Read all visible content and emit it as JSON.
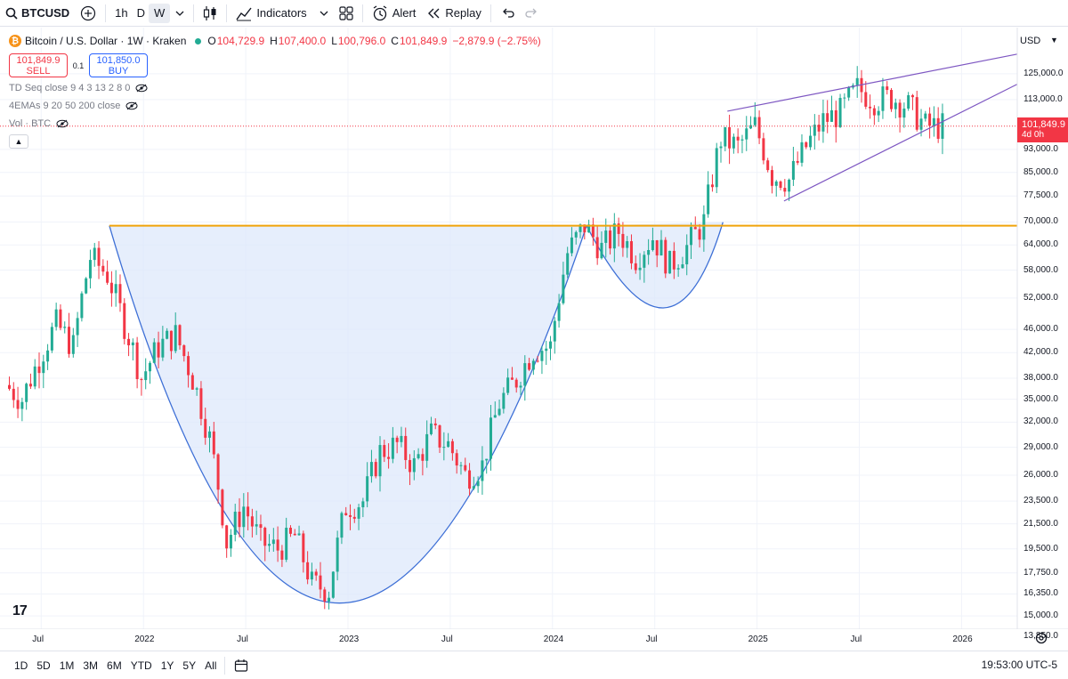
{
  "toolbar": {
    "symbol": "BTCUSD",
    "intervals": [
      "1h",
      "D",
      "W"
    ],
    "active_interval": "W",
    "indicators_label": "Indicators",
    "alert_label": "Alert",
    "replay_label": "Replay",
    "icons": [
      "search-icon",
      "add-symbol-icon",
      "chevron-down-icon",
      "candles-icon",
      "indicators-icon",
      "layout-icon",
      "alert-icon",
      "replay-icon",
      "undo-icon",
      "redo-icon"
    ]
  },
  "legend": {
    "title": "Bitcoin / U.S. Dollar · 1W · Kraken",
    "open_label": "O",
    "open": "104,729.9",
    "high_label": "H",
    "high": "107,400.0",
    "low_label": "L",
    "low": "100,796.0",
    "close_label": "C",
    "close": "101,849.9",
    "change": "−2,879.9 (−2.75%)",
    "sell_price": "101,849.9",
    "sell_label": "SELL",
    "spread": "0.1",
    "buy_price": "101,850.0",
    "buy_label": "BUY",
    "indicators": [
      "TD Seq close 9 4 3 13 2 8 0",
      "4EMAs 9 20 50 200 close",
      "Vol · BTC"
    ]
  },
  "price_axis": {
    "currency": "USD",
    "labels": [
      "125,000.0",
      "113,000.0",
      "93,000.0",
      "85,000.0",
      "77,500.0",
      "70,000.0",
      "64,000.0",
      "58,000.0",
      "52,000.0",
      "46,000.0",
      "42,000.0",
      "38,000.0",
      "35,000.0",
      "32,000.0",
      "29,000.0",
      "26,000.0",
      "23,500.0",
      "21,500.0",
      "19,500.0",
      "17,750.0",
      "16,350.0",
      "15,000.0",
      "13,850.0"
    ],
    "last_price": "101,849.9",
    "countdown": "4d 0h"
  },
  "time_axis": {
    "labels": [
      "Jul",
      "2022",
      "Jul",
      "2023",
      "Jul",
      "2024",
      "Jul",
      "2025",
      "Jul",
      "2026"
    ]
  },
  "bottom_bar": {
    "ranges": [
      "1D",
      "5D",
      "1M",
      "3M",
      "6M",
      "YTD",
      "1Y",
      "5Y",
      "All"
    ],
    "clock": "19:53:00 UTC-5"
  },
  "colors": {
    "up": "#22ab94",
    "down": "#f23645",
    "resistance": "#f0a30a",
    "cup_line": "#3d6fd6",
    "cup_fill": "#dbe7fb",
    "wedge": "#7e57c2",
    "last_price": "#f23645"
  },
  "chart_data": {
    "type": "candlestick",
    "title": "Bitcoin / U.S. Dollar · 1W · Kraken",
    "scale": "log",
    "ylim": [
      13850,
      135000
    ],
    "x_range": [
      "2021-05",
      "2026-01"
    ],
    "series": [
      {
        "name": "BTCUSD weekly closes (approx.)",
        "x": [
          "2021-05",
          "2021-06",
          "2021-07",
          "2021-08",
          "2021-09",
          "2021-10",
          "2021-11",
          "2021-12",
          "2022-01",
          "2022-02",
          "2022-03",
          "2022-04",
          "2022-05",
          "2022-06",
          "2022-07",
          "2022-08",
          "2022-09",
          "2022-10",
          "2022-11",
          "2022-12",
          "2023-01",
          "2023-02",
          "2023-03",
          "2023-04",
          "2023-05",
          "2023-06",
          "2023-07",
          "2023-08",
          "2023-09",
          "2023-10",
          "2023-11",
          "2023-12",
          "2024-01",
          "2024-02",
          "2024-03",
          "2024-04",
          "2024-05",
          "2024-06",
          "2024-07",
          "2024-08",
          "2024-09",
          "2024-10",
          "2024-11",
          "2024-12",
          "2025-01",
          "2025-02",
          "2025-03",
          "2025-04",
          "2025-05",
          "2025-06",
          "2025-07",
          "2025-08",
          "2025-09",
          "2025-10",
          "2025-11"
        ],
        "values": [
          37000,
          35000,
          41000,
          47000,
          43000,
          61000,
          57000,
          47000,
          38000,
          43000,
          45000,
          38000,
          30000,
          20000,
          23000,
          20000,
          19500,
          20500,
          17000,
          16600,
          23000,
          23500,
          28500,
          29300,
          27000,
          30500,
          29300,
          26000,
          27000,
          34500,
          37800,
          42500,
          43000,
          62000,
          69000,
          63000,
          67500,
          61000,
          66000,
          59000,
          63500,
          70000,
          97000,
          94000,
          102000,
          84000,
          82500,
          94000,
          104000,
          107500,
          118000,
          113000,
          114000,
          110000,
          101849.9
        ]
      }
    ],
    "annotations": {
      "resistance_level": 69000,
      "cup_and_handle": {
        "cup_start": "2021-11",
        "cup_bottom": "2022-12",
        "cup_bottom_price": 15500,
        "cup_end": "2024-03",
        "handle_bottom": "2024-08",
        "handle_bottom_price": 49000
      },
      "rising_wedge": {
        "upper_start": 108000,
        "upper_end": 135000,
        "lower_start": 76000,
        "lower_end": 120000
      }
    }
  }
}
